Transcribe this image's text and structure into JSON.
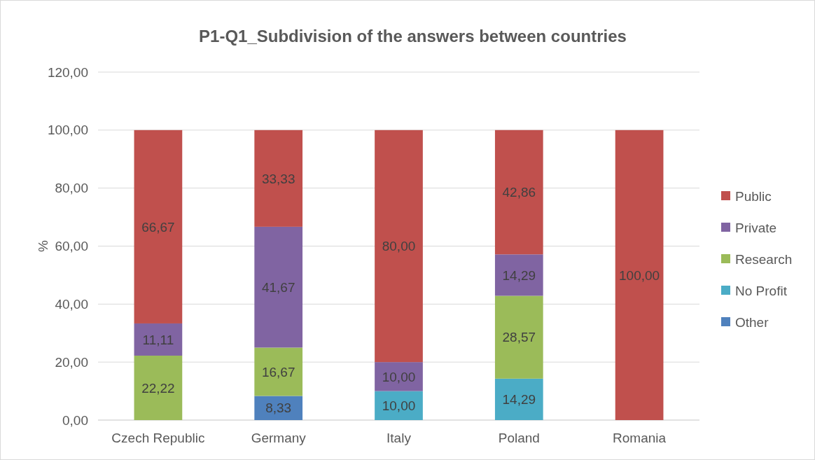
{
  "chart_data": {
    "type": "bar",
    "stacked": true,
    "title": "P1-Q1_Subdivision of the answers between countries",
    "ylabel": "%",
    "categories": [
      "Czech Republic",
      "Germany",
      "Italy",
      "Poland",
      "Romania"
    ],
    "series": [
      {
        "name": "Other",
        "color": "#4f81bd",
        "values": [
          null,
          8.33,
          null,
          null,
          null
        ],
        "value_labels": [
          null,
          "8,33",
          null,
          null,
          null
        ]
      },
      {
        "name": "No Profit",
        "color": "#4bacc6",
        "values": [
          null,
          null,
          10,
          14.29,
          null
        ],
        "value_labels": [
          null,
          null,
          "10,00",
          "14,29",
          null
        ]
      },
      {
        "name": "Research",
        "color": "#9bbb59",
        "values": [
          22.22,
          16.67,
          null,
          28.57,
          null
        ],
        "value_labels": [
          "22,22",
          "16,67",
          null,
          "28,57",
          null
        ]
      },
      {
        "name": "Private",
        "color": "#8064a2",
        "values": [
          11.11,
          41.67,
          10,
          14.29,
          null
        ],
        "value_labels": [
          "11,11",
          "41,67",
          "10,00",
          "14,29",
          null
        ]
      },
      {
        "name": "Public",
        "color": "#c0504d",
        "values": [
          66.67,
          33.33,
          80,
          42.86,
          100
        ],
        "value_labels": [
          "66,67",
          "33,33",
          "80,00",
          "42,86",
          "100,00"
        ]
      }
    ],
    "ylim": [
      0,
      120
    ],
    "yticks": [
      {
        "value": 0,
        "label": "0,00"
      },
      {
        "value": 20,
        "label": "20,00"
      },
      {
        "value": 40,
        "label": "40,00"
      },
      {
        "value": 60,
        "label": "60,00"
      },
      {
        "value": 80,
        "label": "80,00"
      },
      {
        "value": 100,
        "label": "100,00"
      },
      {
        "value": 120,
        "label": "120,00"
      }
    ],
    "grid": "y",
    "legend": "right"
  }
}
